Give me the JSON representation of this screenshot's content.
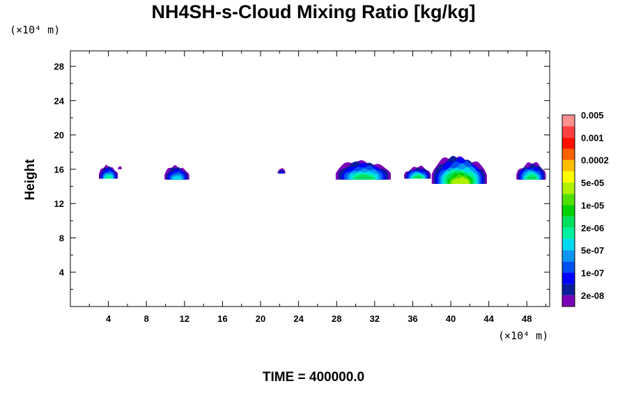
{
  "chart_data": {
    "type": "heatmap",
    "title": "NH4SH-s-Cloud Mixing Ratio [kg/kg]",
    "ylabel": "Height",
    "xlabel": "",
    "x_unit": "(×10⁴ m)",
    "y_unit": "(×10⁴ m)",
    "time_label": "TIME = 400000.0",
    "xlim": [
      0,
      50.4
    ],
    "ylim": [
      0,
      29.8
    ],
    "x_ticks": [
      4,
      8,
      12,
      16,
      20,
      24,
      28,
      32,
      36,
      40,
      44,
      48
    ],
    "y_ticks": [
      4,
      8,
      12,
      16,
      20,
      24,
      28
    ],
    "x_tick_labels": [
      "4",
      "8",
      "12",
      "16",
      "20",
      "24",
      "28",
      "32",
      "36",
      "40",
      "44",
      "48"
    ],
    "y_tick_labels": [
      "4",
      "8",
      "12",
      "16",
      "20",
      "24",
      "28"
    ],
    "colorbar": {
      "colors": [
        "#7a00b8",
        "#0a1e9a",
        "#0000ff",
        "#0050f0",
        "#0a96f0",
        "#00d8f0",
        "#00f2a0",
        "#00e060",
        "#00d000",
        "#50e000",
        "#b0f000",
        "#ffff00",
        "#ffc000",
        "#ff6000",
        "#ff1000",
        "#ff4040",
        "#ff9090"
      ],
      "labels": [
        "2e-08",
        "1e-07",
        "5e-07",
        "2e-06",
        "1e-05",
        "5e-05",
        "0.0002",
        "0.001",
        "0.005"
      ]
    },
    "clouds": [
      {
        "x": [
          3.0,
          5.0
        ],
        "top": 16.6,
        "bottom": 14.9,
        "max_level": 7
      },
      {
        "x": [
          5.0,
          5.4
        ],
        "top": 16.4,
        "bottom": 16.0,
        "max_level": 1
      },
      {
        "x": [
          9.9,
          12.5
        ],
        "top": 16.6,
        "bottom": 14.8,
        "max_level": 6
      },
      {
        "x": [
          21.8,
          22.6
        ],
        "top": 16.2,
        "bottom": 15.5,
        "max_level": 3
      },
      {
        "x": [
          27.9,
          33.7
        ],
        "top": 17.3,
        "bottom": 14.8,
        "max_level": 8
      },
      {
        "x": [
          35.1,
          37.9
        ],
        "top": 16.5,
        "bottom": 14.9,
        "max_level": 8
      },
      {
        "x": [
          38.0,
          43.8
        ],
        "top": 18.0,
        "bottom": 14.3,
        "max_level": 11
      },
      {
        "x": [
          46.9,
          50.0
        ],
        "top": 17.0,
        "bottom": 14.8,
        "max_level": 8
      }
    ]
  }
}
